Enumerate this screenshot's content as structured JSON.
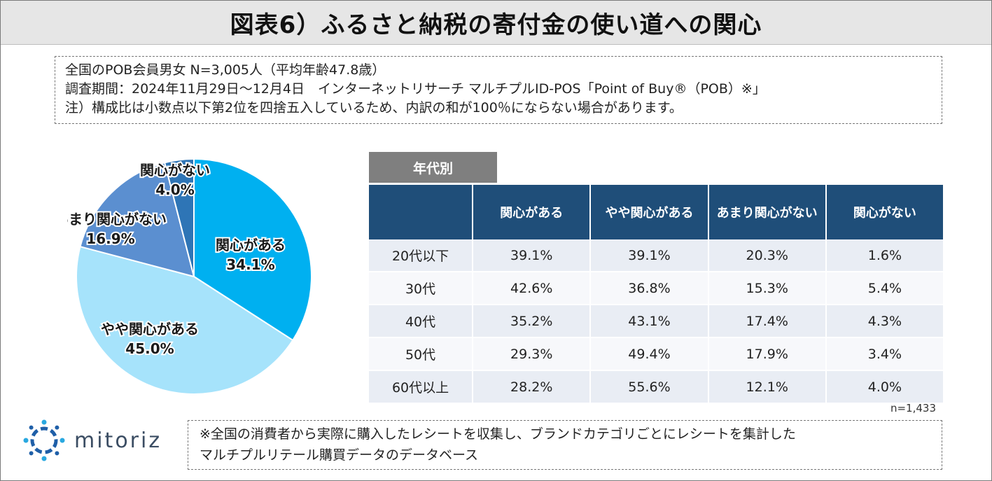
{
  "title": "図表6）ふるさと納税の寄付金の使い道への関心",
  "notes": [
    "全国のPOB会員男女 N=3,005人（平均年齢47.8歳）",
    "調査期間：2024年11月29日～12月4日　インターネットリサーチ マルチプルID-POS「Point of Buy®（POB）※」",
    "注）構成比は小数点以下第2位を四捨五入しているため、内訳の和が100％にならない場合があります。"
  ],
  "chart_data": [
    {
      "type": "pie",
      "categories": [
        "関心がある",
        "やや関心がある",
        "あまり関心がない",
        "関心がない"
      ],
      "values": [
        34.1,
        45.0,
        16.9,
        4.0
      ],
      "labels": [
        "34.1%",
        "45.0%",
        "16.9%",
        "4.0%"
      ],
      "colors": [
        "#00b0f0",
        "#a6e3fb",
        "#5b8fd0",
        "#2e75b6"
      ]
    },
    {
      "type": "table",
      "tab_label": "年代別",
      "columns": [
        "",
        "関心がある",
        "やや関心がある",
        "あまり関心がない",
        "関心がない"
      ],
      "rows": [
        [
          "20代以下",
          "39.1%",
          "39.1%",
          "20.3%",
          "1.6%"
        ],
        [
          "30代",
          "42.6%",
          "36.8%",
          "15.3%",
          "5.4%"
        ],
        [
          "40代",
          "35.2%",
          "43.1%",
          "17.4%",
          "4.3%"
        ],
        [
          "50代",
          "29.3%",
          "49.4%",
          "17.9%",
          "3.4%"
        ],
        [
          "60代以上",
          "28.2%",
          "55.6%",
          "12.1%",
          "4.0%"
        ]
      ],
      "n_label": "n=1,433"
    }
  ],
  "logo_text": "mitoriz",
  "footnote": [
    "※全国の消費者から実際に購入したレシートを収集し、ブランドカテゴリごとにレシートを集計した",
    "マルチプルリテール購買データのデータベース"
  ]
}
